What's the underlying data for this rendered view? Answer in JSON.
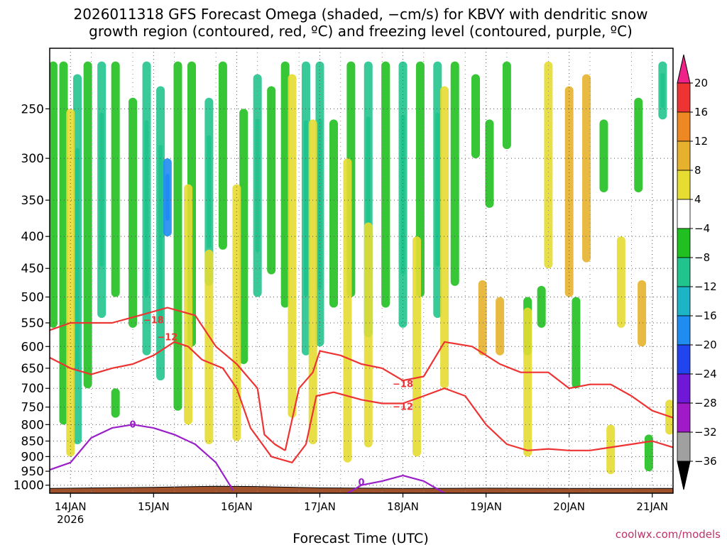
{
  "chart_data": {
    "type": "heatmap",
    "title_lines": [
      "2026011318 GFS Forecast Omega (shaded, −cm/s) for KBVY with dendritic snow",
      "growth region (contoured, red, ºC) and freezing level (contoured, purple, ºC)"
    ],
    "xlabel": "Forecast Time (UTC)",
    "credit": "coolwx.com/models",
    "y_axis": {
      "quantity": "pressure (hPa)",
      "reversed": true,
      "log_scale": true,
      "range": [
        1030,
        200
      ],
      "ticks": [
        250,
        300,
        350,
        400,
        450,
        500,
        550,
        600,
        650,
        700,
        750,
        800,
        850,
        900,
        950,
        1000
      ]
    },
    "x_axis": {
      "quantity": "forecast valid time (UTC)",
      "range": [
        "2026-01-13T18:00Z",
        "2026-01-21T06:00Z"
      ],
      "ticks": [
        {
          "time": "2026-01-14T00:00Z",
          "label": "14JAN",
          "sublabel": "2026"
        },
        {
          "time": "2026-01-15T00:00Z",
          "label": "15JAN"
        },
        {
          "time": "2026-01-16T00:00Z",
          "label": "16JAN"
        },
        {
          "time": "2026-01-17T00:00Z",
          "label": "17JAN"
        },
        {
          "time": "2026-01-18T00:00Z",
          "label": "18JAN"
        },
        {
          "time": "2026-01-19T00:00Z",
          "label": "19JAN"
        },
        {
          "time": "2026-01-20T00:00Z",
          "label": "20JAN"
        },
        {
          "time": "2026-01-21T00:00Z",
          "label": "21JAN"
        }
      ]
    },
    "grid": true,
    "colorbar": {
      "placement": "right",
      "levels": [
        {
          "label": "20",
          "color": "#ee2288"
        },
        {
          "label": "16",
          "color": "#ee3333"
        },
        {
          "label": "12",
          "color": "#ee8822"
        },
        {
          "label": "8",
          "color": "#e6b22e"
        },
        {
          "label": "4",
          "color": "#e6dc32"
        },
        {
          "label": "−4",
          "color": "#ffffff"
        },
        {
          "label": "−8",
          "color": "#20c020"
        },
        {
          "label": "−12",
          "color": "#22c48e"
        },
        {
          "label": "−16",
          "color": "#1eb4c8"
        },
        {
          "label": "−20",
          "color": "#1e8cf0"
        },
        {
          "label": "−24",
          "color": "#2244ee"
        },
        {
          "label": "−28",
          "color": "#7018d8"
        },
        {
          "label": "−32",
          "color": "#a01ac8"
        },
        {
          "label": "−36",
          "color": "#a0a0a0"
        }
      ],
      "below_color": "#000000"
    },
    "omega_bands": [
      {
        "time": "2026-01-13T19:00Z",
        "p_top": 210,
        "p_bot": 560,
        "value": -8
      },
      {
        "time": "2026-01-13T22:00Z",
        "p_top": 210,
        "p_bot": 800,
        "value": -10
      },
      {
        "time": "2026-01-14T02:00Z",
        "p_top": 220,
        "p_bot": 860,
        "value": -12
      },
      {
        "time": "2026-01-14T05:00Z",
        "p_top": 210,
        "p_bot": 700,
        "value": -8
      },
      {
        "time": "2026-01-14T09:00Z",
        "p_top": 210,
        "p_bot": 540,
        "value": -12
      },
      {
        "time": "2026-01-14T13:00Z",
        "p_top": 210,
        "p_bot": 500,
        "value": -8
      },
      {
        "time": "2026-01-14T18:00Z",
        "p_top": 240,
        "p_bot": 560,
        "value": -10
      },
      {
        "time": "2026-01-14T22:00Z",
        "p_top": 210,
        "p_bot": 620,
        "value": -12
      },
      {
        "time": "2026-01-15T02:00Z",
        "p_top": 230,
        "p_bot": 680,
        "value": -14
      },
      {
        "time": "2026-01-15T04:00Z",
        "p_top": 300,
        "p_bot": 400,
        "value": -22
      },
      {
        "time": "2026-01-15T07:00Z",
        "p_top": 210,
        "p_bot": 760,
        "value": -10
      },
      {
        "time": "2026-01-15T11:00Z",
        "p_top": 210,
        "p_bot": 600,
        "value": -8
      },
      {
        "time": "2026-01-15T16:00Z",
        "p_top": 240,
        "p_bot": 480,
        "value": -12
      },
      {
        "time": "2026-01-15T20:00Z",
        "p_top": 210,
        "p_bot": 420,
        "value": -8
      },
      {
        "time": "2026-01-16T02:00Z",
        "p_top": 250,
        "p_bot": 640,
        "value": -10
      },
      {
        "time": "2026-01-16T06:00Z",
        "p_top": 220,
        "p_bot": 500,
        "value": -12
      },
      {
        "time": "2026-01-16T10:00Z",
        "p_top": 230,
        "p_bot": 460,
        "value": -8
      },
      {
        "time": "2026-01-16T14:00Z",
        "p_top": 210,
        "p_bot": 520,
        "value": -10
      },
      {
        "time": "2026-01-16T20:00Z",
        "p_top": 210,
        "p_bot": 620,
        "value": -12
      },
      {
        "time": "2026-01-17T00:00Z",
        "p_top": 210,
        "p_bot": 600,
        "value": -14
      },
      {
        "time": "2026-01-17T04:00Z",
        "p_top": 260,
        "p_bot": 520,
        "value": -10
      },
      {
        "time": "2026-01-17T09:00Z",
        "p_top": 210,
        "p_bot": 500,
        "value": -8
      },
      {
        "time": "2026-01-17T14:00Z",
        "p_top": 210,
        "p_bot": 580,
        "value": -12
      },
      {
        "time": "2026-01-17T19:00Z",
        "p_top": 210,
        "p_bot": 520,
        "value": -10
      },
      {
        "time": "2026-01-18T00:00Z",
        "p_top": 210,
        "p_bot": 560,
        "value": -14
      },
      {
        "time": "2026-01-18T05:00Z",
        "p_top": 210,
        "p_bot": 500,
        "value": -10
      },
      {
        "time": "2026-01-18T10:00Z",
        "p_top": 210,
        "p_bot": 540,
        "value": -12
      },
      {
        "time": "2026-01-18T15:00Z",
        "p_top": 210,
        "p_bot": 480,
        "value": -8
      },
      {
        "time": "2026-01-18T21:00Z",
        "p_top": 220,
        "p_bot": 300,
        "value": -10
      },
      {
        "time": "2026-01-19T01:00Z",
        "p_top": 260,
        "p_bot": 360,
        "value": -8
      },
      {
        "time": "2026-01-19T06:00Z",
        "p_top": 210,
        "p_bot": 290,
        "value": -8
      },
      {
        "time": "2026-01-19T12:00Z",
        "p_top": 500,
        "p_bot": 620,
        "value": -8
      },
      {
        "time": "2026-01-19T16:00Z",
        "p_top": 480,
        "p_bot": 560,
        "value": -10
      },
      {
        "time": "2026-01-20T02:00Z",
        "p_top": 500,
        "p_bot": 700,
        "value": -8
      },
      {
        "time": "2026-01-20T10:00Z",
        "p_top": 260,
        "p_bot": 340,
        "value": -8
      },
      {
        "time": "2026-01-20T20:00Z",
        "p_top": 240,
        "p_bot": 340,
        "value": -8
      },
      {
        "time": "2026-01-21T03:00Z",
        "p_top": 210,
        "p_bot": 260,
        "value": -12
      },
      {
        "time": "2026-01-20T23:00Z",
        "p_top": 830,
        "p_bot": 950,
        "value": -8
      },
      {
        "time": "2026-01-14T13:00Z",
        "p_top": 700,
        "p_bot": 780,
        "value": -10
      },
      {
        "time": "2026-01-14T00:00Z",
        "p_top": 250,
        "p_bot": 900,
        "value": 4
      },
      {
        "time": "2026-01-15T10:00Z",
        "p_top": 330,
        "p_bot": 800,
        "value": 6
      },
      {
        "time": "2026-01-15T16:00Z",
        "p_top": 420,
        "p_bot": 860,
        "value": 5
      },
      {
        "time": "2026-01-16T00:00Z",
        "p_top": 330,
        "p_bot": 850,
        "value": 5
      },
      {
        "time": "2026-01-16T16:00Z",
        "p_top": 220,
        "p_bot": 780,
        "value": 6
      },
      {
        "time": "2026-01-16T22:00Z",
        "p_top": 260,
        "p_bot": 860,
        "value": 4
      },
      {
        "time": "2026-01-17T08:00Z",
        "p_top": 300,
        "p_bot": 920,
        "value": 5
      },
      {
        "time": "2026-01-17T14:00Z",
        "p_top": 380,
        "p_bot": 870,
        "value": 6
      },
      {
        "time": "2026-01-18T04:00Z",
        "p_top": 400,
        "p_bot": 900,
        "value": 5
      },
      {
        "time": "2026-01-18T12:00Z",
        "p_top": 230,
        "p_bot": 700,
        "value": 4
      },
      {
        "time": "2026-01-18T23:00Z",
        "p_top": 470,
        "p_bot": 620,
        "value": 9
      },
      {
        "time": "2026-01-19T04:00Z",
        "p_top": 500,
        "p_bot": 620,
        "value": 11
      },
      {
        "time": "2026-01-19T12:00Z",
        "p_top": 520,
        "p_bot": 900,
        "value": 5
      },
      {
        "time": "2026-01-19T18:00Z",
        "p_top": 210,
        "p_bot": 450,
        "value": 5
      },
      {
        "time": "2026-01-20T00:00Z",
        "p_top": 230,
        "p_bot": 500,
        "value": 9
      },
      {
        "time": "2026-01-20T05:00Z",
        "p_top": 220,
        "p_bot": 440,
        "value": 8
      },
      {
        "time": "2026-01-20T15:00Z",
        "p_top": 400,
        "p_bot": 560,
        "value": 5
      },
      {
        "time": "2026-01-20T21:00Z",
        "p_top": 470,
        "p_bot": 600,
        "value": 9
      },
      {
        "time": "2026-01-20T12:00Z",
        "p_top": 800,
        "p_bot": 960,
        "value": 5
      },
      {
        "time": "2026-01-21T05:00Z",
        "p_top": 730,
        "p_bot": 830,
        "value": 5
      }
    ],
    "contours": [
      {
        "name": "-18",
        "color": "#ee3333",
        "label_class": "red",
        "points": [
          [
            "2026-01-13T18:00Z",
            565
          ],
          [
            "2026-01-14T00:00Z",
            550
          ],
          [
            "2026-01-14T12:00Z",
            550
          ],
          [
            "2026-01-14T20:00Z",
            535
          ],
          [
            "2026-01-15T04:00Z",
            520
          ],
          [
            "2026-01-15T12:00Z",
            535
          ],
          [
            "2026-01-15T18:00Z",
            600
          ],
          [
            "2026-01-16T00:00Z",
            640
          ],
          [
            "2026-01-16T06:00Z",
            700
          ],
          [
            "2026-01-16T08:00Z",
            830
          ],
          [
            "2026-01-16T11:00Z",
            860
          ],
          [
            "2026-01-16T14:00Z",
            880
          ]
        ],
        "label_at": [
          "2026-01-15T00:00Z",
          545
        ]
      },
      {
        "name": "-12",
        "color": "#ee3333",
        "label_class": "red",
        "points": [
          [
            "2026-01-13T18:00Z",
            625
          ],
          [
            "2026-01-14T00:00Z",
            650
          ],
          [
            "2026-01-14T06:00Z",
            665
          ],
          [
            "2026-01-14T12:00Z",
            650
          ],
          [
            "2026-01-14T18:00Z",
            640
          ],
          [
            "2026-01-15T00:00Z",
            620
          ],
          [
            "2026-01-15T06:00Z",
            590
          ],
          [
            "2026-01-15T10:00Z",
            600
          ],
          [
            "2026-01-15T14:00Z",
            630
          ],
          [
            "2026-01-15T20:00Z",
            650
          ],
          [
            "2026-01-16T00:00Z",
            700
          ],
          [
            "2026-01-16T04:00Z",
            810
          ],
          [
            "2026-01-16T10:00Z",
            900
          ],
          [
            "2026-01-16T16:00Z",
            920
          ],
          [
            "2026-01-16T20:00Z",
            860
          ]
        ],
        "label_at": [
          "2026-01-15T04:00Z",
          580
        ]
      },
      {
        "name": "-18",
        "color": "#ee3333",
        "label_class": "red",
        "points": [
          [
            "2026-01-16T14:00Z",
            880
          ],
          [
            "2026-01-16T18:00Z",
            700
          ],
          [
            "2026-01-16T22:00Z",
            660
          ],
          [
            "2026-01-17T00:00Z",
            610
          ],
          [
            "2026-01-17T06:00Z",
            620
          ],
          [
            "2026-01-17T12:00Z",
            640
          ],
          [
            "2026-01-17T18:00Z",
            650
          ],
          [
            "2026-01-18T00:00Z",
            680
          ],
          [
            "2026-01-18T06:00Z",
            670
          ],
          [
            "2026-01-18T12:00Z",
            590
          ],
          [
            "2026-01-18T20:00Z",
            600
          ],
          [
            "2026-01-19T04:00Z",
            640
          ],
          [
            "2026-01-19T10:00Z",
            660
          ],
          [
            "2026-01-19T18:00Z",
            660
          ],
          [
            "2026-01-20T00:00Z",
            700
          ],
          [
            "2026-01-20T06:00Z",
            690
          ],
          [
            "2026-01-20T12:00Z",
            690
          ],
          [
            "2026-01-20T18:00Z",
            720
          ],
          [
            "2026-01-21T00:00Z",
            760
          ],
          [
            "2026-01-21T06:00Z",
            780
          ]
        ],
        "label_at": [
          "2026-01-18T00:00Z",
          690
        ]
      },
      {
        "name": "-12",
        "color": "#ee3333",
        "label_class": "red",
        "points": [
          [
            "2026-01-16T20:00Z",
            860
          ],
          [
            "2026-01-16T23:00Z",
            720
          ],
          [
            "2026-01-17T04:00Z",
            710
          ],
          [
            "2026-01-17T12:00Z",
            730
          ],
          [
            "2026-01-17T18:00Z",
            740
          ],
          [
            "2026-01-18T00:00Z",
            740
          ],
          [
            "2026-01-18T06:00Z",
            720
          ],
          [
            "2026-01-18T12:00Z",
            700
          ],
          [
            "2026-01-18T18:00Z",
            720
          ],
          [
            "2026-01-19T00:00Z",
            800
          ],
          [
            "2026-01-19T06:00Z",
            860
          ],
          [
            "2026-01-19T12:00Z",
            880
          ],
          [
            "2026-01-19T18:00Z",
            875
          ],
          [
            "2026-01-20T00:00Z",
            880
          ],
          [
            "2026-01-20T06:00Z",
            880
          ],
          [
            "2026-01-20T12:00Z",
            870
          ],
          [
            "2026-01-20T18:00Z",
            860
          ],
          [
            "2026-01-21T00:00Z",
            850
          ],
          [
            "2026-01-21T06:00Z",
            870
          ]
        ],
        "label_at": [
          "2026-01-18T00:00Z",
          750
        ]
      },
      {
        "name": "0",
        "color": "#9a1fc8",
        "label_class": "purple",
        "points": [
          [
            "2026-01-13T18:00Z",
            945
          ],
          [
            "2026-01-14T00:00Z",
            920
          ],
          [
            "2026-01-14T06:00Z",
            840
          ],
          [
            "2026-01-14T12:00Z",
            810
          ],
          [
            "2026-01-14T18:00Z",
            800
          ],
          [
            "2026-01-15T00:00Z",
            810
          ],
          [
            "2026-01-15T06:00Z",
            830
          ],
          [
            "2026-01-15T12:00Z",
            860
          ],
          [
            "2026-01-15T18:00Z",
            920
          ],
          [
            "2026-01-15T23:00Z",
            1020
          ]
        ],
        "label_at": [
          "2026-01-14T18:00Z",
          800
        ]
      },
      {
        "name": "0",
        "color": "#9a1fc8",
        "label_class": "purple",
        "points": [
          [
            "2026-01-17T08:00Z",
            1030
          ],
          [
            "2026-01-17T12:00Z",
            1000
          ],
          [
            "2026-01-17T18:00Z",
            985
          ],
          [
            "2026-01-18T00:00Z",
            965
          ],
          [
            "2026-01-18T06:00Z",
            985
          ],
          [
            "2026-01-18T12:00Z",
            1030
          ]
        ],
        "label_at": [
          "2026-01-17T12:00Z",
          990
        ]
      }
    ],
    "terrain_color": "#a0522d",
    "surface_pressure": [
      [
        "2026-01-13T18:00Z",
        1012
      ],
      [
        "2026-01-15T00:00Z",
        1008
      ],
      [
        "2026-01-15T18:00Z",
        1004
      ],
      [
        "2026-01-16T06:00Z",
        1005
      ],
      [
        "2026-01-17T00:00Z",
        1010
      ],
      [
        "2026-01-18T00:00Z",
        1012
      ],
      [
        "2026-01-19T00:00Z",
        1011
      ],
      [
        "2026-01-20T00:00Z",
        1012
      ],
      [
        "2026-01-21T06:00Z",
        1012
      ]
    ]
  }
}
